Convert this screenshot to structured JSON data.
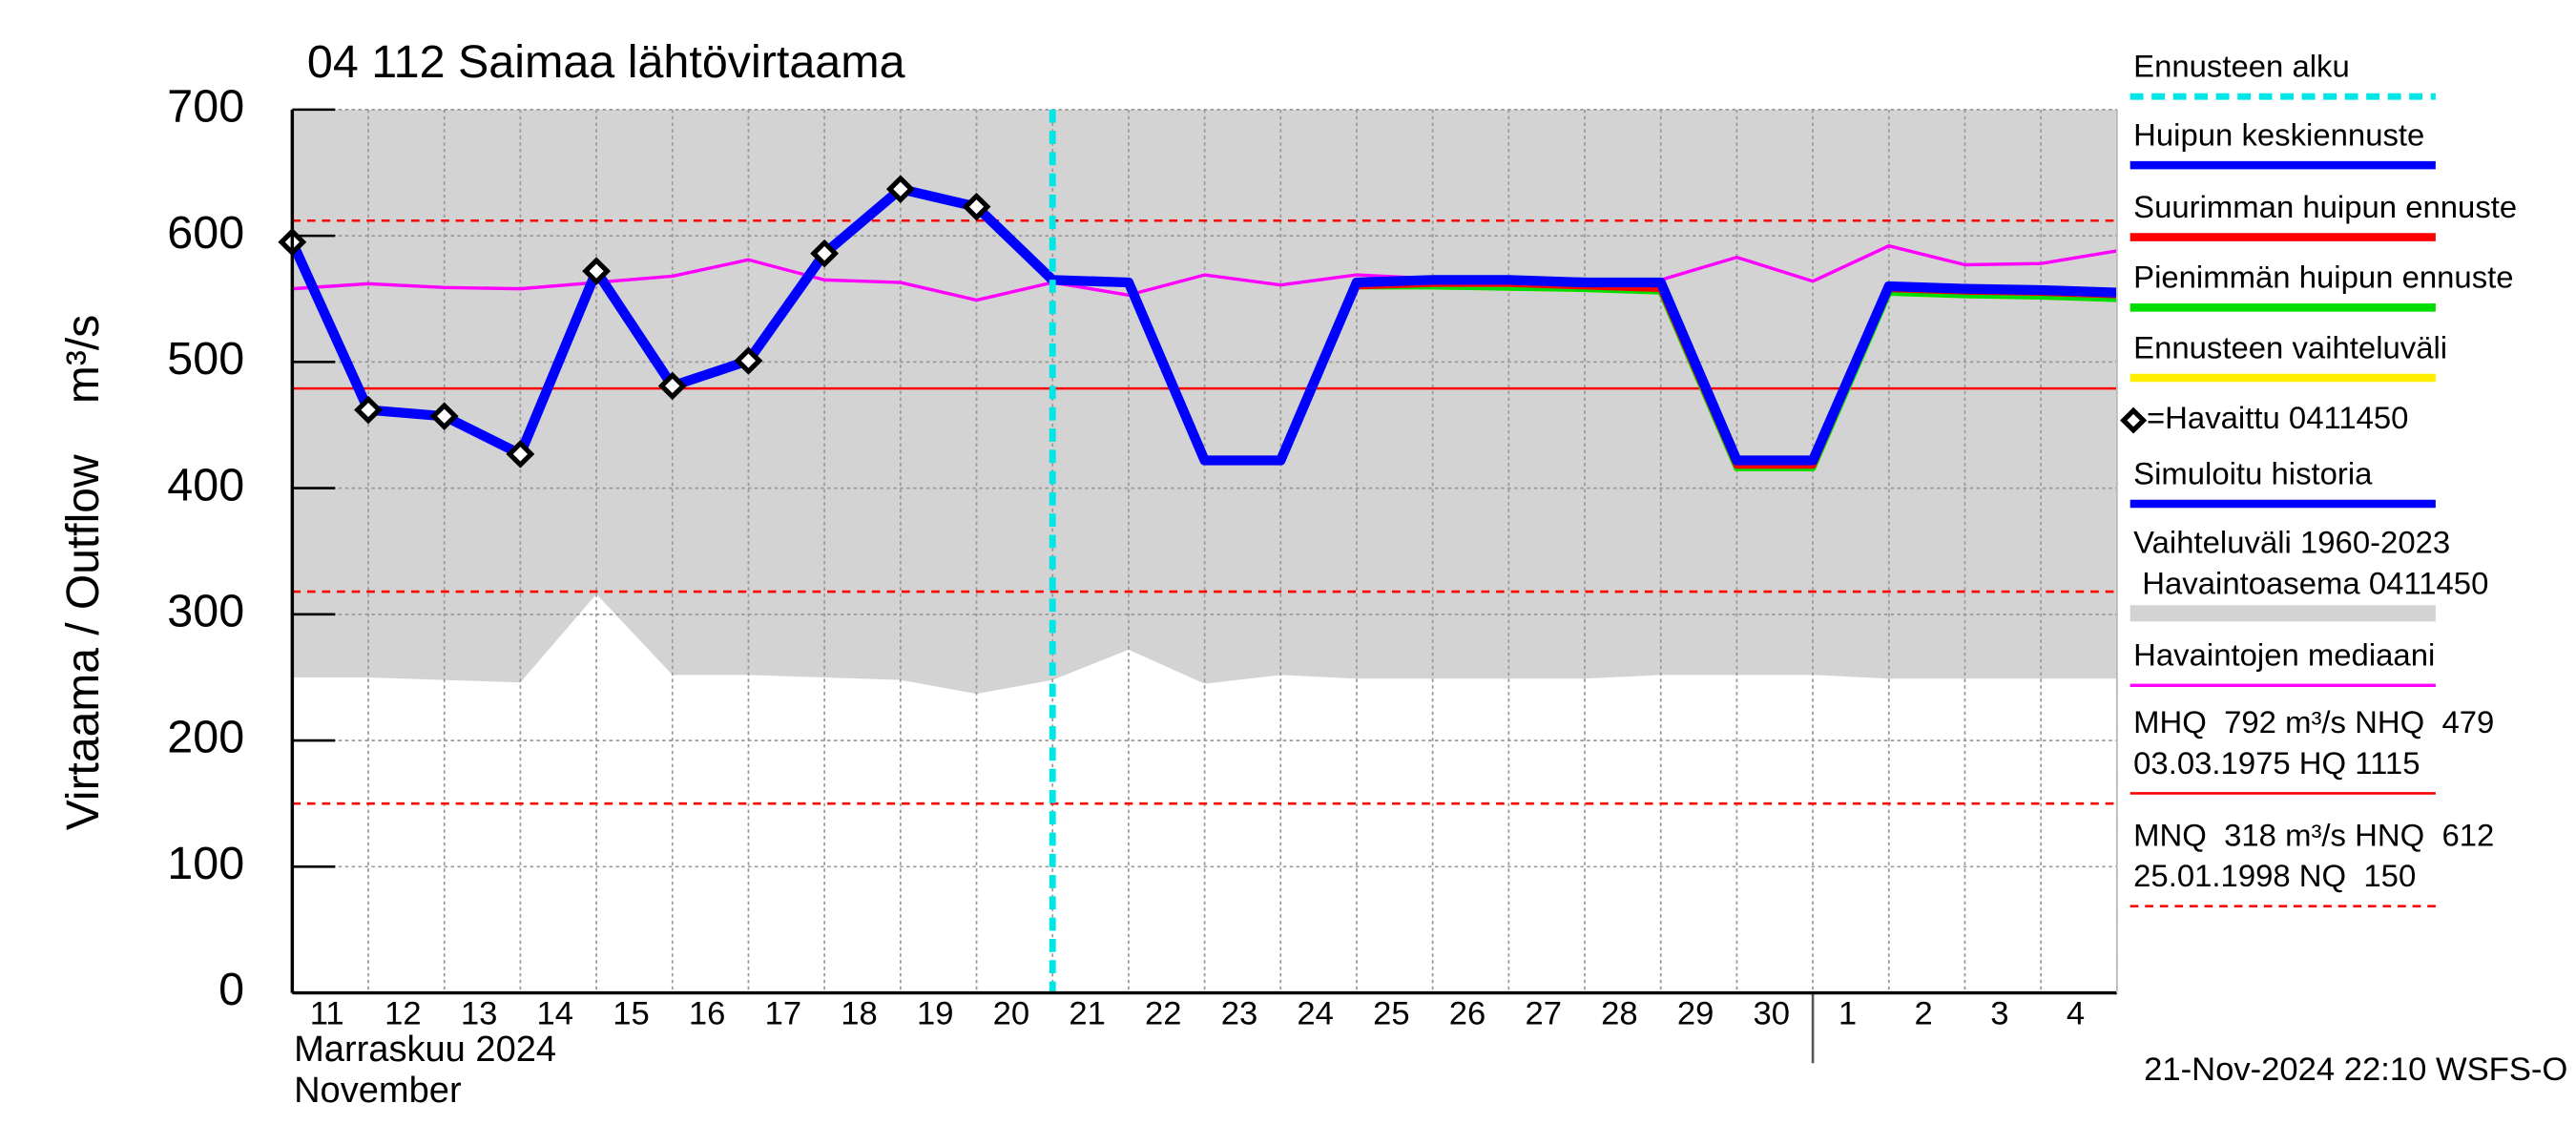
{
  "chart_data": {
    "type": "line",
    "title": "04 112 Saimaa lähtövirtaama",
    "y_label": "Virtaama / Outflow    m³/s",
    "month_label": "Marraskuu 2024",
    "month_label_en": "November",
    "timestamp": "21-Nov-2024 22:10 WSFS-O",
    "categories": [
      "11",
      "12",
      "13",
      "14",
      "15",
      "16",
      "17",
      "18",
      "19",
      "20",
      "21",
      "22",
      "23",
      "24",
      "25",
      "26",
      "27",
      "28",
      "29",
      "30",
      "1",
      "2",
      "3",
      "4",
      null
    ],
    "month_break": "1",
    "ylim": [
      0,
      700
    ],
    "yticks": [
      0,
      100,
      200,
      300,
      400,
      500,
      600,
      700
    ],
    "grid": true,
    "forecast_start": {
      "name": "Ennusteen alku",
      "category": "21",
      "color": "#00e5e5"
    },
    "band": {
      "name": [
        "Vaihteluväli 1960-2023",
        " Havaintoasema 0411450"
      ],
      "color": "#d3d3d3",
      "lower": [
        250,
        250,
        248,
        246,
        316,
        252,
        252,
        250,
        248,
        237,
        248,
        272,
        245,
        252,
        249,
        249,
        249,
        249,
        252,
        252,
        252,
        249,
        249,
        249,
        249
      ]
    },
    "series": [
      {
        "name": "Huipun keskiennuste",
        "color": "#0000ff",
        "width": 6,
        "legend_order": 1,
        "values": [
          null,
          null,
          null,
          null,
          null,
          null,
          null,
          null,
          null,
          null,
          565,
          563,
          422,
          422,
          563,
          565,
          565,
          563,
          563,
          422,
          422,
          560,
          558,
          557,
          555
        ]
      },
      {
        "name": "Suurimman huipun ennuste",
        "color": "#ff0000",
        "width": 4,
        "legend_order": 2,
        "values": [
          null,
          null,
          null,
          null,
          null,
          null,
          null,
          null,
          null,
          null,
          565,
          563,
          422,
          422,
          560,
          562,
          562,
          560,
          558,
          418,
          418,
          558,
          556,
          555,
          553
        ]
      },
      {
        "name": "Pienimmän huipun ennuste",
        "color": "#00dd00",
        "width": 4,
        "legend_order": 3,
        "values": [
          null,
          null,
          null,
          null,
          null,
          null,
          null,
          null,
          null,
          null,
          565,
          563,
          422,
          422,
          560,
          560,
          559,
          558,
          556,
          416,
          416,
          555,
          553,
          552,
          550
        ]
      },
      {
        "name": "Ennusteen vaihteluväli",
        "color": "#ffee00",
        "width": 4,
        "legend_order": 4,
        "values": [
          null,
          null,
          null,
          null,
          null,
          null,
          null,
          null,
          null,
          null,
          565,
          563,
          422,
          422,
          560,
          560,
          559,
          558,
          556,
          416,
          416,
          555,
          553,
          552,
          550
        ]
      },
      {
        "name": "=Havaittu 0411450",
        "color": "#000000",
        "marker": "diamond",
        "legend_order": 5,
        "values": [
          595,
          462,
          457,
          427,
          572,
          481,
          501,
          586,
          637,
          623,
          null,
          null,
          null,
          null,
          null,
          null,
          null,
          null,
          null,
          null,
          null,
          null,
          null,
          null,
          null
        ]
      },
      {
        "name": "Simuloitu historia",
        "color": "#0000ff",
        "width": 6,
        "legend_order": 6,
        "values": [
          595,
          462,
          457,
          427,
          572,
          481,
          501,
          586,
          637,
          623,
          565,
          null,
          null,
          null,
          null,
          null,
          null,
          null,
          null,
          null,
          null,
          null,
          null,
          null,
          null
        ]
      },
      {
        "name": "Havaintojen mediaani",
        "color": "#ff00ff",
        "width": 2,
        "legend_order": 8,
        "values": [
          558,
          562,
          559,
          558,
          563,
          568,
          581,
          565,
          563,
          549,
          563,
          553,
          569,
          561,
          569,
          566,
          563,
          557,
          565,
          583,
          564,
          592,
          577,
          578,
          588
        ]
      }
    ],
    "reference_lines": [
      {
        "value": 479,
        "dashed": false,
        "color": "#ff0000"
      },
      {
        "value": 612,
        "dashed": true,
        "color": "#ff0000"
      },
      {
        "value": 318,
        "dashed": true,
        "color": "#ff0000"
      },
      {
        "value": 150,
        "dashed": true,
        "color": "#ff0000"
      }
    ],
    "reference_legend": [
      {
        "lines": [
          "MHQ  792 m³/s NHQ  479",
          "03.03.1975 HQ 1115"
        ],
        "dashed": false,
        "color": "#ff0000"
      },
      {
        "lines": [
          "MNQ  318 m³/s HNQ  612",
          "25.01.1998 NQ  150"
        ],
        "dashed": true,
        "color": "#ff0000"
      }
    ]
  }
}
